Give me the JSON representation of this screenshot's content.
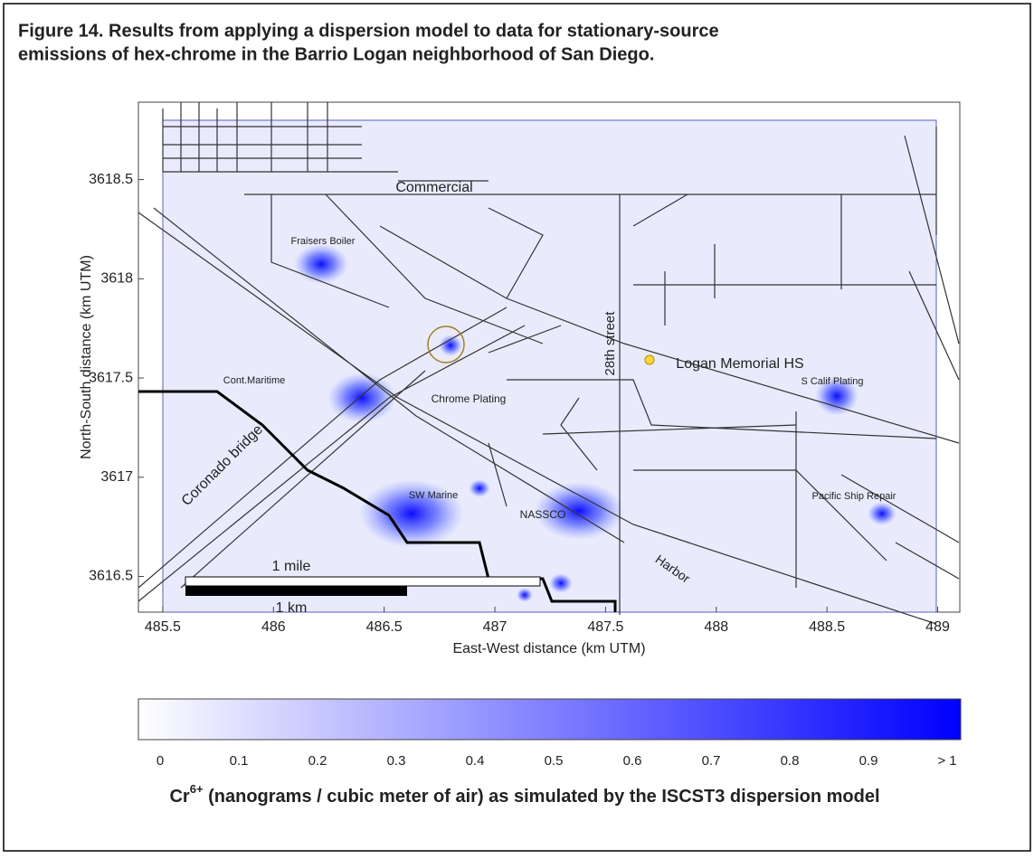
{
  "figure": {
    "title_line1": "Figure 14. Results from applying a dispersion model to data for stationary-source",
    "title_line2": "emissions of hex-chrome in the Barrio Logan neighborhood of San Diego."
  },
  "map": {
    "xlabel": "East-West distance (km UTM)",
    "ylabel": "North-South distance (km UTM)",
    "xlim": [
      485.39,
      489.1
    ],
    "ylim": [
      3616.32,
      3618.89
    ],
    "xticks": [
      485.5,
      486,
      486.5,
      487,
      487.5,
      488,
      488.5,
      489
    ],
    "yticks": [
      3616.5,
      3617,
      3617.5,
      3618,
      3618.5
    ],
    "labels": [
      "Commercial",
      "Fraisers Boiler",
      "Cont.Maritime",
      "Chrome Plating",
      "Logan Memorial HS",
      "S Calif Plating",
      "Pacific Ship Repair",
      "SW Marine",
      "NASSCO",
      "Harbor",
      "28th street",
      "Coronado bridge"
    ],
    "scale_mile": "1 mile",
    "scale_km": "1 km"
  },
  "colorbar": {
    "lim": [
      0,
      1
    ],
    "ticks": [
      0,
      0.1,
      0.2,
      0.3,
      0.4,
      0.5,
      0.6,
      0.7,
      0.8,
      0.9,
      {
        "value": 1,
        "label": "> 1"
      }
    ],
    "color_low": "#ffffff",
    "color_high": "#0000ff"
  },
  "caption": {
    "base": "Cr",
    "superscript": "6+",
    "rest": " (nanograms / cubic meter of air) as simulated by the ISCST3 dispersion model"
  }
}
